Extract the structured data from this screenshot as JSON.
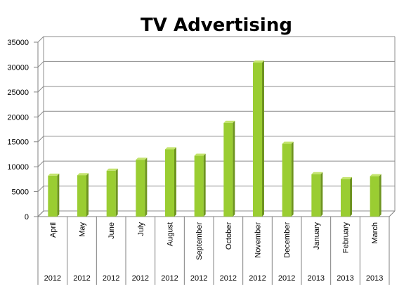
{
  "chart_data": {
    "type": "bar",
    "title": "TV Advertising",
    "categories": [
      "April",
      "May",
      "June",
      "July",
      "August",
      "September",
      "October",
      "November",
      "December",
      "January",
      "February",
      "March"
    ],
    "years": [
      "2012",
      "2012",
      "2012",
      "2012",
      "2012",
      "2012",
      "2012",
      "2012",
      "2012",
      "2013",
      "2013",
      "2013"
    ],
    "values": [
      8200,
      8300,
      9200,
      11400,
      13500,
      12200,
      18800,
      30900,
      14600,
      8500,
      7500,
      8100
    ],
    "ylim": [
      0,
      35000
    ],
    "yticks": [
      "0",
      "5000",
      "10000",
      "15000",
      "20000",
      "25000",
      "30000",
      "35000"
    ],
    "grid": true,
    "colors": {
      "bar_front": "#9acd32",
      "bar_side": "#6e9420",
      "bar_top": "#c4e46e",
      "gridline": "#8c8c8c",
      "axis": "#808080"
    }
  }
}
